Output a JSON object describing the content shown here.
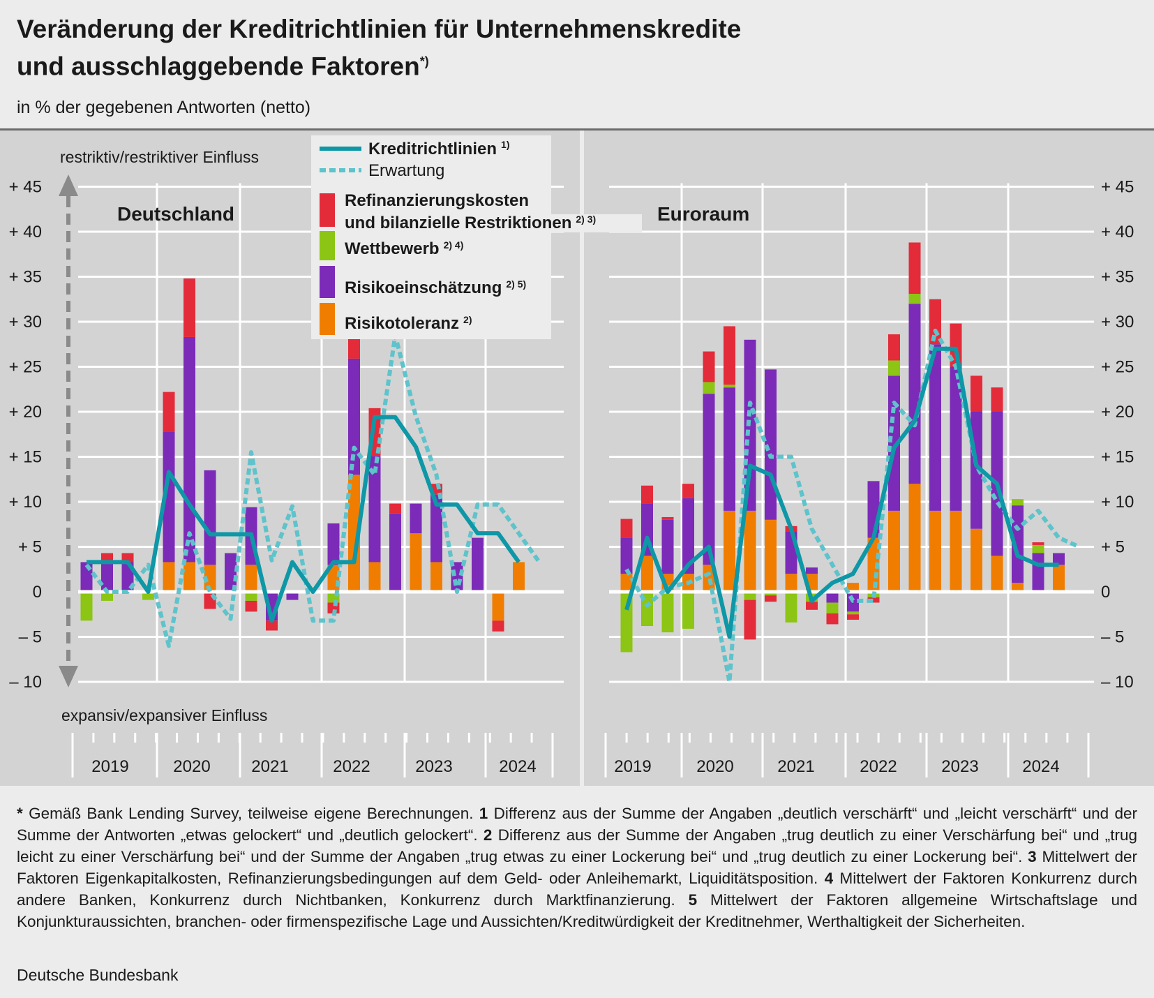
{
  "title_line1": "Veränderung der Kreditrichtlinien für Unternehmenskredite",
  "title_line2": "und ausschlaggebende Faktoren",
  "title_sup": "*)",
  "subtitle": "in % der gegebenen Antworten (netto)",
  "direction_up": "restriktiv/restriktiver Einfluss",
  "direction_down": "expansiv/expansiver Einfluss",
  "legend": {
    "line": "Kreditrichtlinien",
    "line_sup": "1)",
    "dashed": "Erwartung",
    "refi_1": "Refinanzierungskosten",
    "refi_2": "und bilanzielle Restriktionen",
    "refi_sup": "2) 3)",
    "wett": "Wettbewerb",
    "wett_sup": "2) 4)",
    "risiko": "Risikoeinschätzung",
    "risiko_sup": "2) 5)",
    "toleranz": "Risikotoleranz",
    "toleranz_sup": "2)"
  },
  "colors": {
    "line": "#0e97a6",
    "dashed": "#5ec3cb",
    "refi": "#e32b39",
    "wett": "#8cc513",
    "risiko": "#7b2bb8",
    "toleranz": "#f07d00"
  },
  "notes": {
    "star": "*",
    "star_text": " Gemäß Bank Lending Survey, teilweise eigene Berechnungen. ",
    "n1": "1",
    "n1_text": " Differenz aus der Summe der Angaben „deutlich verschärft“ und „leicht verschärft“ und der Summe der Antworten „etwas gelockert“ und „deutlich gelockert“. ",
    "n2": "2",
    "n2_text": " Differenz aus der Summe der Angaben „trug deutlich zu einer Verschärfung bei“ und „trug leicht zu einer Verschärfung bei“ und der Summe der Angaben „trug etwas zu einer Lockerung bei“ und „trug deutlich zu einer Lockerung bei“. ",
    "n3": "3",
    "n3_text": " Mittelwert der Faktoren Eigenkapitalkosten, Refinanzierungsbedingungen auf dem Geld- oder Anleihemarkt, Liquiditätsposition. ",
    "n4": "4",
    "n4_text": " Mittelwert der Faktoren Konkurrenz durch andere Banken, Konkurrenz durch Nichtbanken, Konkurrenz durch Marktfinanzierung. ",
    "n5": "5",
    "n5_text": " Mittelwert der Faktoren allgemeine Wirtschaftslage und Konjunkturaussichten, branchen- oder firmenspezifische Lage und Aussichten/Kreditwürdigkeit der Kreditnehmer, Werthaltigkeit der Sicherheiten."
  },
  "source": "Deutsche Bundesbank",
  "chart_data": [
    {
      "type": "bar",
      "title": "Deutschland",
      "ylim": [
        -10,
        45
      ],
      "yticks": [
        -10,
        -5,
        0,
        5,
        10,
        15,
        20,
        25,
        30,
        35,
        40,
        45
      ],
      "ytick_labels": [
        "– 10",
        "–  5",
        "0",
        "+  5",
        "+ 10",
        "+ 15",
        "+ 20",
        "+ 25",
        "+ 30",
        "+ 35",
        "+ 40",
        "+ 45"
      ],
      "years": [
        "2019",
        "2020",
        "2021",
        "2022",
        "2023",
        "2024"
      ],
      "quarters": [
        "2019 Q1",
        "2019 Q2",
        "2019 Q3",
        "2019 Q4",
        "2020 Q1",
        "2020 Q2",
        "2020 Q3",
        "2020 Q4",
        "2021 Q1",
        "2021 Q2",
        "2021 Q3",
        "2021 Q4",
        "2022 Q1",
        "2022 Q2",
        "2022 Q3",
        "2022 Q4",
        "2023 Q1",
        "2023 Q2",
        "2023 Q3",
        "2023 Q4",
        "2024 Q1",
        "2024 Q2"
      ],
      "series": [
        {
          "key": "toleranz",
          "values": [
            0,
            0,
            0,
            0,
            3.3,
            3.3,
            3,
            0,
            3,
            0,
            0,
            0,
            3,
            13,
            3.3,
            0,
            6.5,
            3.3,
            0,
            0,
            -3.2,
            3.3
          ]
        },
        {
          "key": "risiko",
          "values": [
            3.3,
            3.3,
            3.3,
            0,
            14.5,
            25,
            10.5,
            4.3,
            6.4,
            -3.2,
            -0.9,
            0,
            4.6,
            12.9,
            11.8,
            8.7,
            3.3,
            7.5,
            3.3,
            6,
            0,
            0
          ]
        },
        {
          "key": "wett",
          "values": [
            -3.2,
            -1,
            0,
            -0.9,
            0,
            0,
            0,
            0,
            -1,
            0,
            0,
            0,
            -1.2,
            0,
            0,
            0,
            0,
            0,
            0,
            0,
            0,
            0
          ]
        },
        {
          "key": "refi",
          "values": [
            0,
            1,
            1,
            0,
            4.4,
            6.5,
            -1.9,
            0,
            -1.2,
            -1.1,
            0,
            0,
            -1.2,
            4.2,
            5.3,
            1.1,
            0,
            1.2,
            0,
            0,
            -1.2,
            0
          ]
        }
      ],
      "line": [
        3.3,
        3.3,
        3.3,
        0,
        13.3,
        9.7,
        6.4,
        6.4,
        6.4,
        -3.2,
        3.3,
        0,
        3.3,
        3.3,
        19.4,
        19.4,
        16.1,
        9.7,
        9.7,
        6.5,
        6.5,
        3.3
      ],
      "expectation": [
        3,
        0,
        0,
        3,
        -6,
        6.5,
        0,
        -3,
        15.5,
        3.5,
        9.5,
        -3.2,
        -3.2,
        16,
        13,
        28.5,
        19.5,
        13,
        0,
        9.7,
        9.7,
        6.5,
        3.3
      ]
    },
    {
      "type": "bar",
      "title": "Euroraum",
      "ylim": [
        -10,
        45
      ],
      "yticks": [
        -10,
        -5,
        0,
        5,
        10,
        15,
        20,
        25,
        30,
        35,
        40,
        45
      ],
      "ytick_labels": [
        "– 10",
        "–  5",
        "0",
        "+  5",
        "+ 10",
        "+ 15",
        "+ 20",
        "+ 25",
        "+ 30",
        "+ 35",
        "+ 40",
        "+ 45"
      ],
      "years": [
        "2019",
        "2020",
        "2021",
        "2022",
        "2023",
        "2024"
      ],
      "quarters": [
        "2019 Q1",
        "2019 Q2",
        "2019 Q3",
        "2019 Q4",
        "2020 Q1",
        "2020 Q2",
        "2020 Q3",
        "2020 Q4",
        "2021 Q1",
        "2021 Q2",
        "2021 Q3",
        "2021 Q4",
        "2022 Q1",
        "2022 Q2",
        "2022 Q3",
        "2022 Q4",
        "2023 Q1",
        "2023 Q2",
        "2023 Q3",
        "2023 Q4",
        "2024 Q1",
        "2024 Q2"
      ],
      "series": [
        {
          "key": "toleranz",
          "values": [
            2,
            4,
            2,
            2,
            3,
            9,
            9,
            8,
            2,
            2,
            0,
            1,
            6,
            9,
            12,
            9,
            9,
            7,
            4,
            1,
            0,
            3
          ]
        },
        {
          "key": "risiko",
          "values": [
            4,
            5.8,
            6,
            8.4,
            19,
            13.7,
            19,
            16.7,
            4.7,
            0.7,
            -1.2,
            -2.2,
            6.3,
            15,
            20,
            18.5,
            16,
            13,
            16,
            8.6,
            4.3,
            1.3
          ]
        },
        {
          "key": "wett",
          "values": [
            -6.7,
            -3.8,
            -4.5,
            -4.1,
            1.3,
            0.3,
            -0.9,
            -0.4,
            -3.4,
            -1.1,
            -1.2,
            -0.3,
            -0.6,
            1.7,
            1.1,
            0,
            0,
            0,
            0,
            0.7,
            0.9,
            0
          ]
        },
        {
          "key": "refi",
          "values": [
            2.1,
            2,
            0.3,
            1.6,
            3.4,
            6.5,
            -4.4,
            -0.7,
            0.6,
            -0.9,
            -1.2,
            -0.6,
            -0.6,
            2.9,
            5.7,
            5,
            4.8,
            4,
            2.7,
            0,
            0.3,
            0
          ]
        }
      ],
      "line": [
        -2,
        6,
        0,
        3,
        5,
        -5,
        14,
        13,
        7,
        -1,
        1,
        2,
        6,
        16,
        19,
        27,
        27,
        14,
        12,
        4,
        3,
        3
      ],
      "expectation": [
        2.5,
        -1.5,
        0.5,
        1,
        2,
        -10,
        21,
        15,
        15,
        7,
        3,
        -1,
        -1,
        21,
        18.5,
        29,
        25,
        14,
        10,
        7,
        9,
        6,
        5
      ]
    }
  ]
}
